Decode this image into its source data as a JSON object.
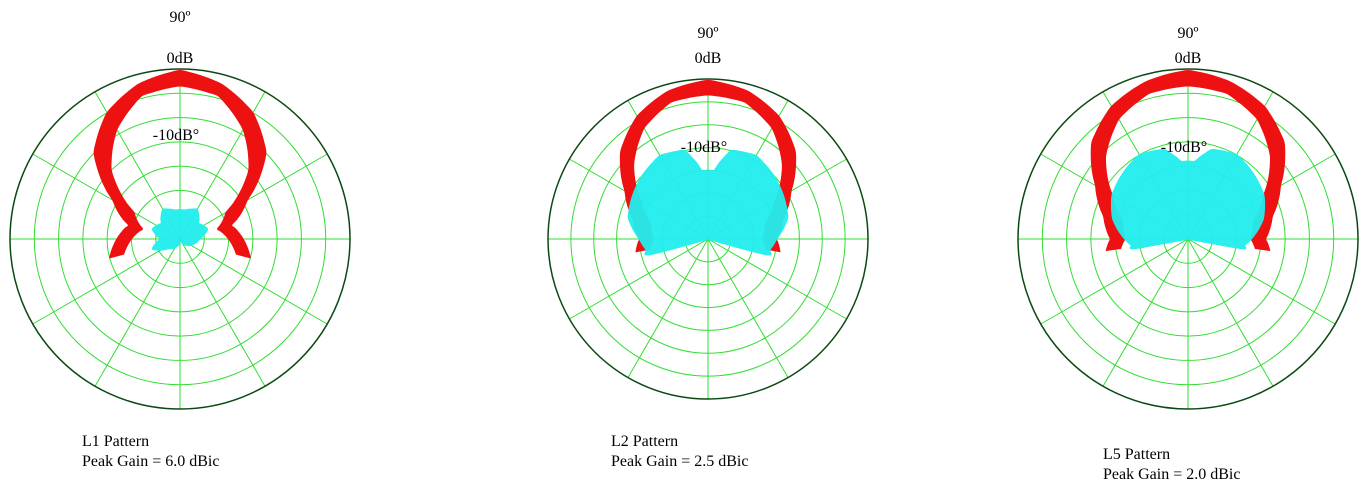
{
  "colors": {
    "grid": "#33dd33",
    "outer_circle": "#0a4a12",
    "copol": "#ee1111",
    "crosspol": "#22eeee"
  },
  "chart_data": [
    {
      "type": "polar",
      "top_label": "90º",
      "zero_label": "0dB",
      "ring_label": "-10dB°",
      "caption_line1": "L1 Pattern",
      "caption_line2": "Peak Gain = 6.0 dBic",
      "grid": true,
      "rings": 7,
      "spokes_deg": 30,
      "series": [
        {
          "role": "copol",
          "angles": [
            -15,
            0,
            15,
            30,
            45,
            60,
            75,
            90,
            105,
            120,
            135,
            150,
            165,
            180,
            195
          ],
          "inner_db": [
            -23,
            -25,
            -27,
            -24,
            -15,
            -9,
            -4.5,
            -3.5,
            -4.5,
            -9,
            -15,
            -24,
            -27,
            -25,
            -23
          ],
          "outer_db": [
            -20,
            -22,
            -24,
            -19,
            -10,
            -5,
            -2,
            -0.3,
            -2,
            -5,
            -10,
            -19,
            -24,
            -22,
            -20
          ]
        },
        {
          "role": "crosspol",
          "angles": [
            0,
            20,
            40,
            60,
            80,
            100,
            120,
            140,
            160,
            180,
            200,
            220,
            240,
            260,
            280,
            300,
            320,
            340,
            360
          ],
          "outer_db": [
            -31,
            -29,
            -30,
            -28,
            -29,
            -29,
            -28,
            -30,
            -29,
            -31,
            -29,
            -32,
            -33,
            -34,
            -35,
            -34,
            -33,
            -32,
            -31
          ]
        }
      ]
    },
    {
      "type": "polar",
      "top_label": "90º",
      "zero_label": "0dB",
      "ring_label": "-10dB°",
      "caption_line1": "L2 Pattern",
      "caption_line2": "Peak Gain = 2.5 dBic",
      "grid": true,
      "rings": 7,
      "spokes_deg": 30,
      "series": [
        {
          "role": "copol",
          "angles": [
            -10,
            0,
            15,
            30,
            45,
            60,
            75,
            90,
            105,
            120,
            135,
            150,
            165,
            180,
            190
          ],
          "inner_db": [
            -22,
            -23,
            -22,
            -18,
            -12,
            -7,
            -4,
            -3.5,
            -4,
            -7,
            -12,
            -18,
            -22,
            -23,
            -22
          ],
          "outer_db": [
            -19,
            -20,
            -18,
            -14,
            -8,
            -4,
            -1.5,
            -0.3,
            -1.5,
            -4,
            -8,
            -14,
            -18,
            -20,
            -19
          ]
        },
        {
          "role": "crosspol",
          "angles": [
            -15,
            0,
            15,
            30,
            45,
            60,
            75,
            85,
            95,
            105,
            120,
            135,
            150,
            165,
            180,
            195
          ],
          "outer_db": [
            -22,
            -20,
            -17,
            -16,
            -15,
            -14,
            -15,
            -20,
            -20,
            -15,
            -14,
            -15,
            -16,
            -17,
            -20,
            -22
          ]
        }
      ]
    },
    {
      "type": "polar",
      "top_label": "90º",
      "zero_label": "0dB",
      "ring_label": "-10dB°",
      "caption_line1": "L5 Pattern",
      "caption_line2": "Peak Gain = 2.0 dBic",
      "grid": true,
      "rings": 7,
      "spokes_deg": 30,
      "series": [
        {
          "role": "copol",
          "angles": [
            -8,
            0,
            15,
            30,
            45,
            60,
            75,
            90,
            105,
            120,
            135,
            150,
            165,
            180,
            188
          ],
          "inner_db": [
            -21,
            -22,
            -21,
            -17,
            -11,
            -6.5,
            -4,
            -3.5,
            -4,
            -6.5,
            -11,
            -17,
            -21,
            -22,
            -21
          ],
          "outer_db": [
            -18,
            -19,
            -17,
            -13,
            -7,
            -3.5,
            -1.5,
            -0.3,
            -1.5,
            -3.5,
            -7,
            -13,
            -17,
            -19,
            -18
          ]
        },
        {
          "role": "crosspol",
          "angles": [
            -10,
            0,
            15,
            30,
            45,
            60,
            75,
            85,
            95,
            105,
            120,
            135,
            150,
            165,
            180,
            190
          ],
          "outer_db": [
            -24,
            -22,
            -19,
            -17,
            -16,
            -15,
            -16,
            -19,
            -19,
            -16,
            -15,
            -16,
            -17,
            -19,
            -22,
            -24
          ]
        }
      ]
    }
  ]
}
